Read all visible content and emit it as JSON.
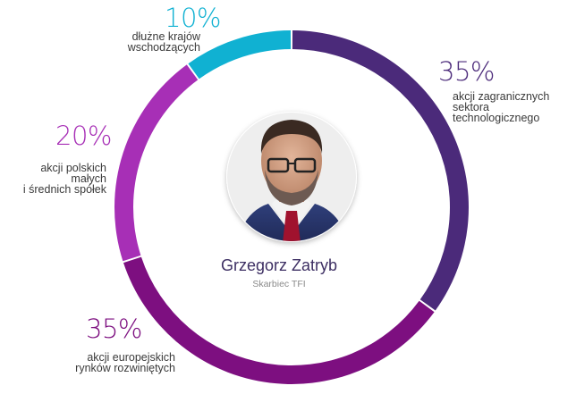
{
  "chart_data": {
    "type": "pie",
    "style": "donut",
    "slices": [
      {
        "value": 35,
        "percent_label": "35%",
        "label_lines": [
          "akcji zagranicznych",
          "sektora",
          "technologicznego"
        ],
        "color": "#4b2a7a"
      },
      {
        "value": 35,
        "percent_label": "35%",
        "label_lines": [
          "akcji europejskich",
          "rynków rozwiniętych"
        ],
        "color": "#7d0f80"
      },
      {
        "value": 20,
        "percent_label": "20%",
        "label_lines": [
          "akcji polskich",
          "małych",
          "i średnich spółek"
        ],
        "color": "#a72fb6"
      },
      {
        "value": 10,
        "percent_label": "10%",
        "label_lines": [
          "dłużne krajów",
          "wschodzących"
        ],
        "color": "#10b1d2"
      }
    ]
  },
  "manager": {
    "name": "Grzegorz Zatryb",
    "company": "Skarbiec TFI"
  }
}
